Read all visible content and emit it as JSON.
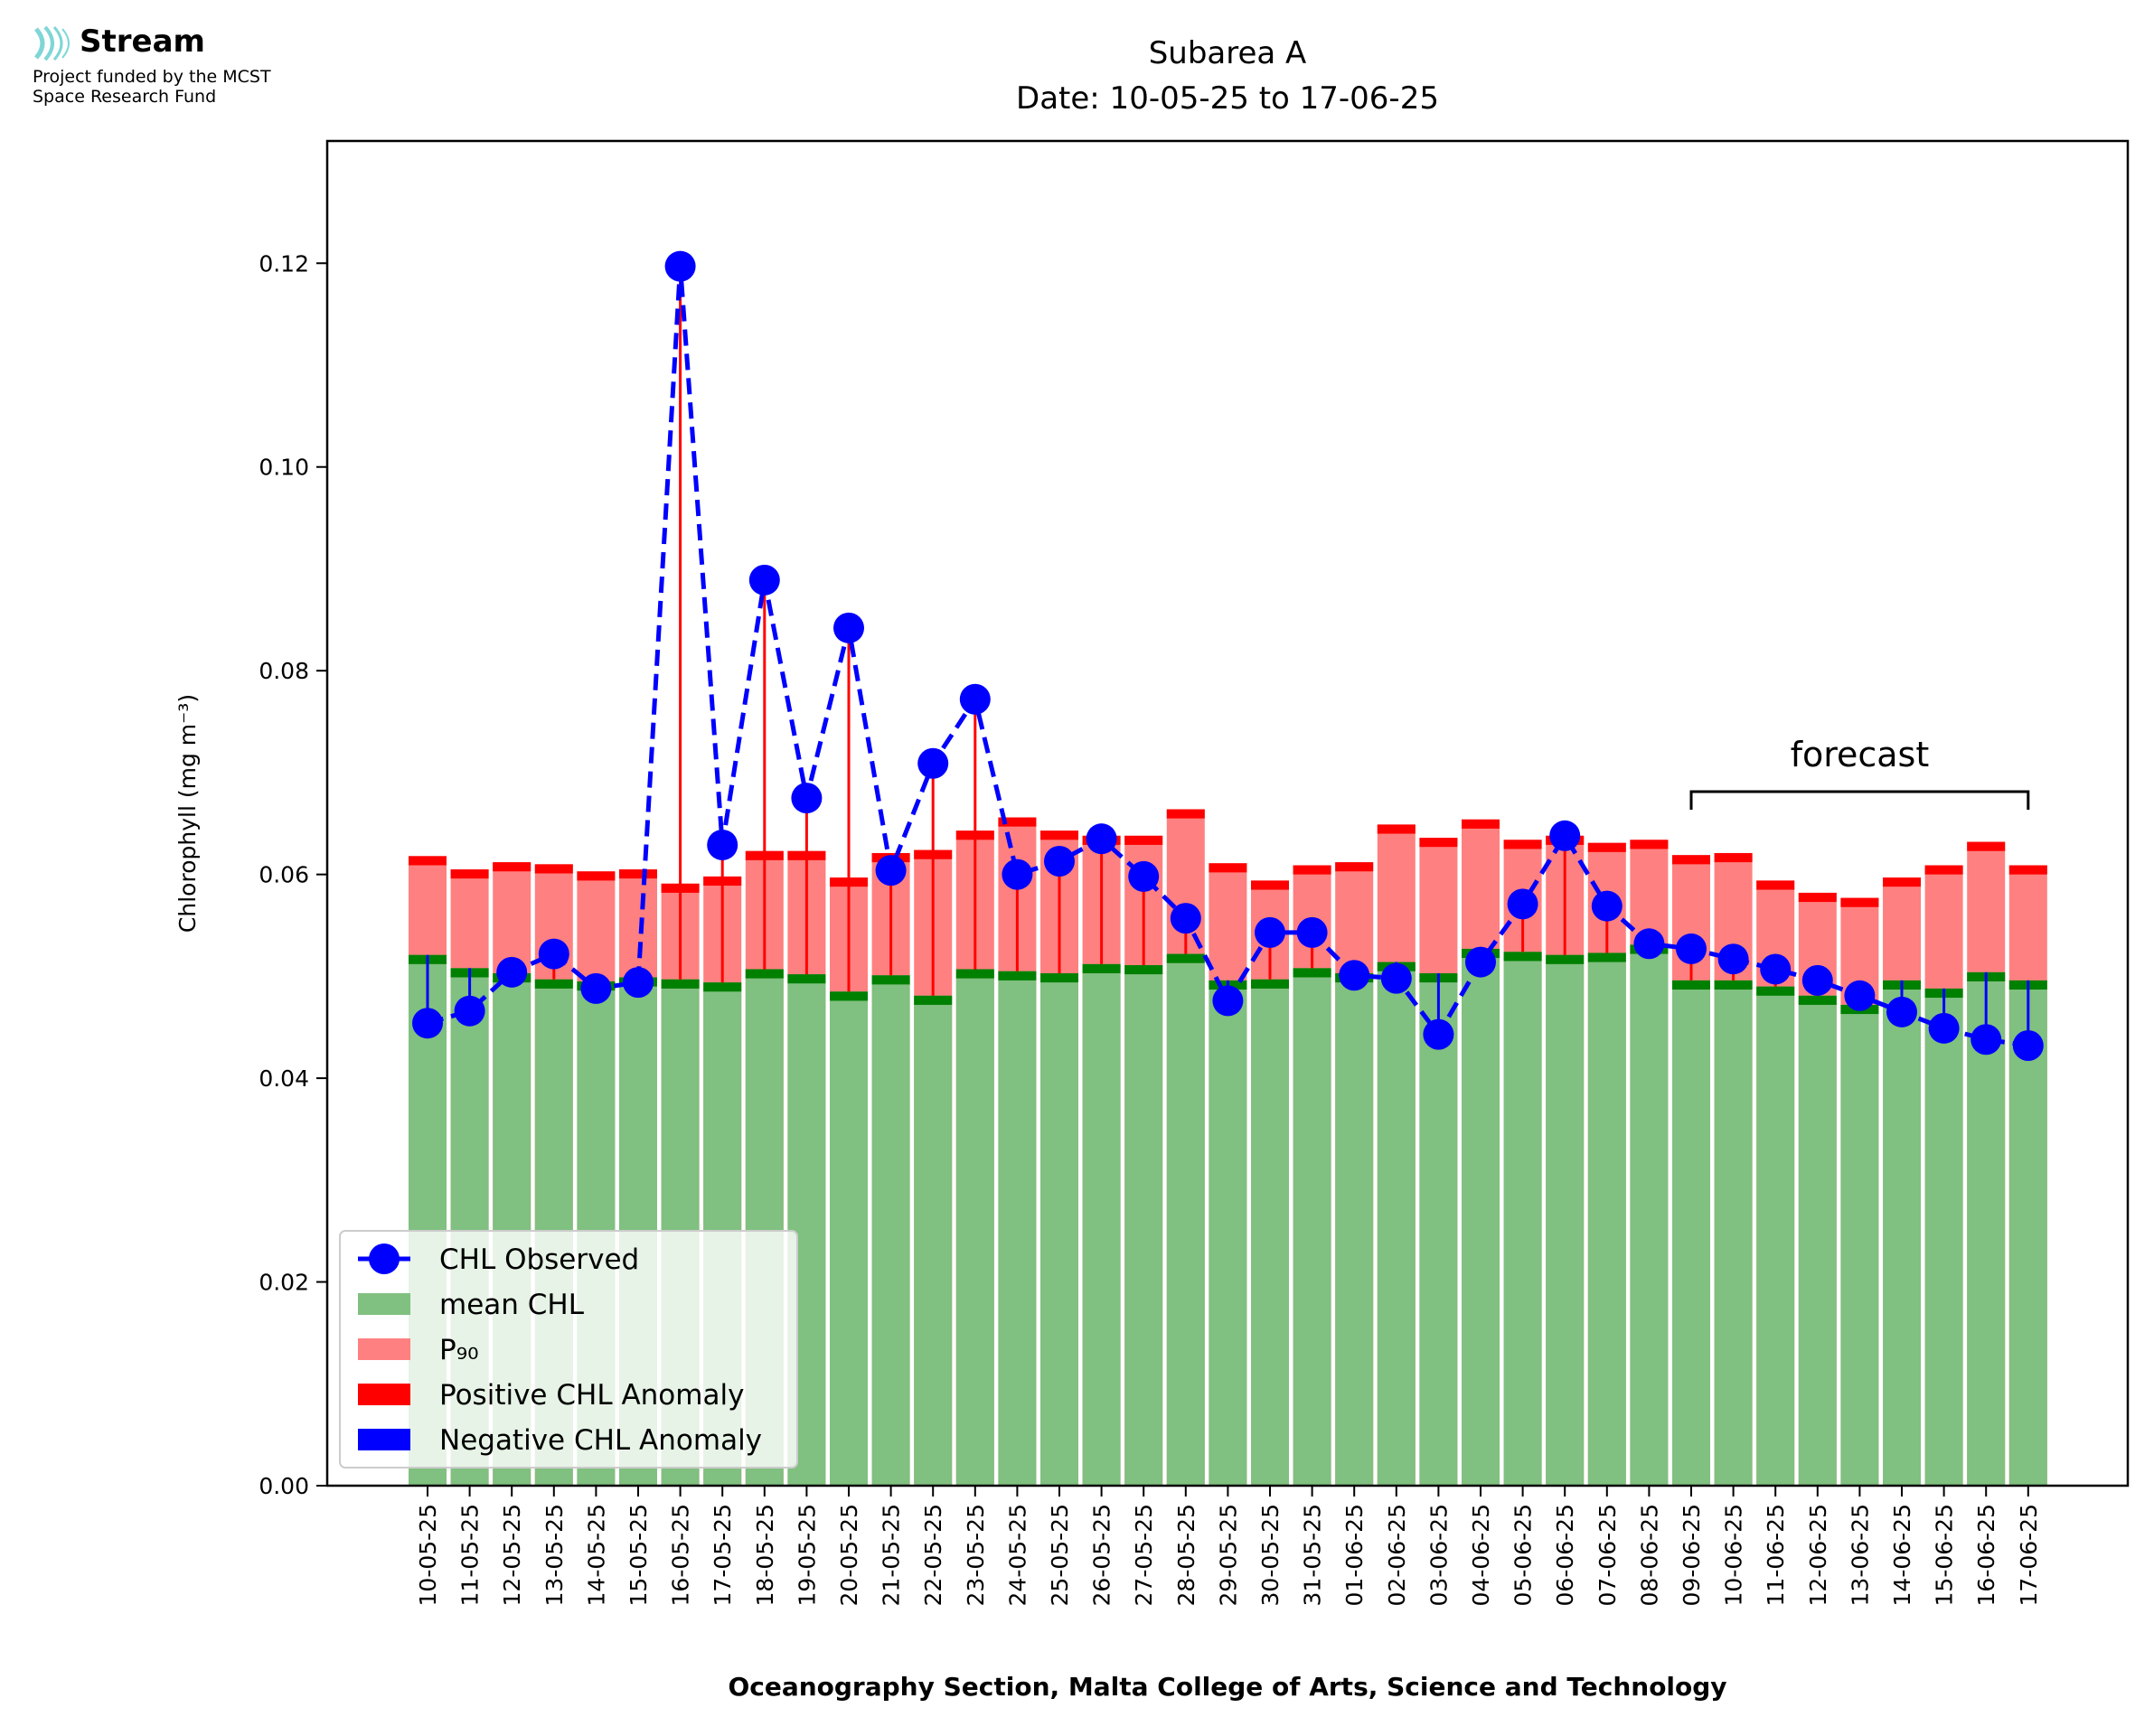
{
  "logo": {
    "icon": "stream-waves-icon",
    "name": "Stream",
    "line1": "Project funded by the MCST",
    "line2": "Space Research Fund",
    "color": "#7fd6d6"
  },
  "chart_data": {
    "type": "bar",
    "title": "Subarea A",
    "subtitle": "Date: 10-05-25 to 17-06-25",
    "xlabel": "Oceanography Section, Malta College of Arts, Science and Technology",
    "ylabel": "Chlorophyll (mg m⁻³)",
    "ylim": [
      0,
      0.132
    ],
    "yticks": [
      "0.00",
      "0.02",
      "0.04",
      "0.06",
      "0.08",
      "0.10",
      "0.12"
    ],
    "grid": false,
    "legend_position": "lower-left",
    "categories": [
      "10-05-25",
      "11-05-25",
      "12-05-25",
      "13-05-25",
      "14-05-25",
      "15-05-25",
      "16-05-25",
      "17-05-25",
      "18-05-25",
      "19-05-25",
      "20-05-25",
      "21-05-25",
      "22-05-25",
      "23-05-25",
      "24-05-25",
      "25-05-25",
      "26-05-25",
      "27-05-25",
      "28-05-25",
      "29-05-25",
      "30-05-25",
      "31-05-25",
      "01-06-25",
      "02-06-25",
      "03-06-25",
      "04-06-25",
      "05-06-25",
      "06-06-25",
      "07-06-25",
      "08-06-25",
      "09-06-25",
      "10-06-25",
      "11-06-25",
      "12-06-25",
      "13-06-25",
      "14-06-25",
      "15-06-25",
      "16-06-25",
      "17-06-25"
    ],
    "series": [
      {
        "name": "CHL Observed",
        "color": "#0000ff",
        "style": "dashed-line-with-markers",
        "values": [
          0.0454,
          0.0466,
          0.0504,
          0.0522,
          0.0488,
          0.0494,
          0.1197,
          0.0629,
          0.0889,
          0.0675,
          0.0842,
          0.0604,
          0.0709,
          0.0772,
          0.06,
          0.0613,
          0.0635,
          0.0598,
          0.0557,
          0.0476,
          0.0543,
          0.0543,
          0.0501,
          0.0498,
          0.0443,
          0.0514,
          0.0571,
          0.0638,
          0.0569,
          0.0532,
          0.0527,
          0.0517,
          0.0507,
          0.0496,
          0.0481,
          0.0465,
          0.0449,
          0.0438,
          0.0432
        ]
      },
      {
        "name": "mean CHL",
        "color": "#80c080",
        "values": [
          0.0521,
          0.0508,
          0.0503,
          0.0497,
          0.0495,
          0.0499,
          0.0497,
          0.0494,
          0.0507,
          0.0502,
          0.0485,
          0.0501,
          0.0481,
          0.0507,
          0.0505,
          0.0503,
          0.0512,
          0.0511,
          0.0522,
          0.0496,
          0.0497,
          0.0508,
          0.0503,
          0.0514,
          0.0503,
          0.0527,
          0.0524,
          0.0521,
          0.0523,
          0.0531,
          0.0496,
          0.0496,
          0.049,
          0.0481,
          0.0472,
          0.0496,
          0.0488,
          0.0504,
          0.0496
        ]
      },
      {
        "name": "P₉₀",
        "color": "#ff8080",
        "values": [
          0.0618,
          0.0605,
          0.0612,
          0.061,
          0.0603,
          0.0605,
          0.0591,
          0.0598,
          0.0623,
          0.0623,
          0.0597,
          0.0621,
          0.0624,
          0.0643,
          0.0656,
          0.0643,
          0.0638,
          0.0638,
          0.0664,
          0.0611,
          0.0594,
          0.0609,
          0.0612,
          0.0649,
          0.0636,
          0.0654,
          0.0634,
          0.0638,
          0.0631,
          0.0634,
          0.0619,
          0.0621,
          0.0594,
          0.0582,
          0.0577,
          0.0597,
          0.0609,
          0.0632,
          0.0609
        ]
      },
      {
        "name": "Positive CHL Anomaly",
        "color": "#ff0000"
      },
      {
        "name": "Negative CHL Anomaly",
        "color": "#0000ff"
      }
    ],
    "annotations": [
      {
        "text": "forecast",
        "from": "09-06-25",
        "to": "17-06-25"
      }
    ]
  }
}
